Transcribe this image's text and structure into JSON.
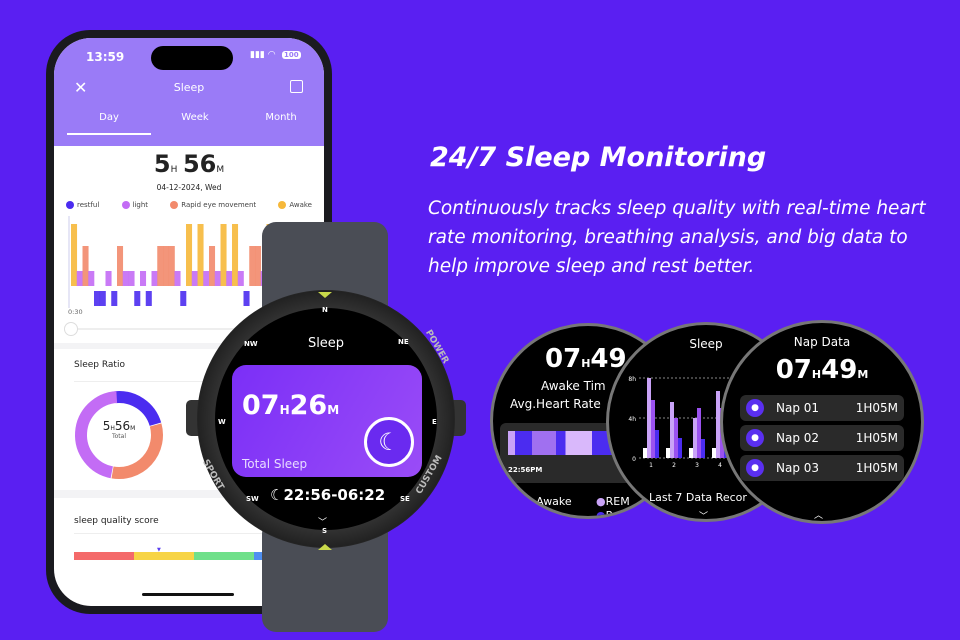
{
  "colors": {
    "background": "#5a1ff2",
    "restful": "#4b2cf0",
    "light": "#c36cf5",
    "rem": "#f28a6c",
    "awake": "#f6b83a",
    "app_header": "#9a7bf7"
  },
  "phone": {
    "status": {
      "time": "13:59",
      "battery": "100"
    },
    "header": {
      "title": "Sleep",
      "close_icon": "close-icon",
      "calendar_icon": "calendar-icon"
    },
    "tabs": [
      {
        "label": "Day",
        "active": true
      },
      {
        "label": "Week"
      },
      {
        "label": "Month"
      }
    ],
    "total": {
      "hours": "5",
      "h": "H",
      "minutes": "56",
      "m": "M"
    },
    "date": "04-12-2024, Wed",
    "legend": [
      {
        "label": "restful",
        "color": "#4b2cf0"
      },
      {
        "label": "light",
        "color": "#c36cf5"
      },
      {
        "label": "Rapid eye movement",
        "color": "#f28a6c"
      },
      {
        "label": "Awake",
        "color": "#f6b83a"
      }
    ],
    "chart_start_label": "0:30",
    "stages": [
      "awake",
      "light",
      "rem",
      "light",
      "restful",
      "restful",
      "light",
      "restful",
      "rem",
      "light",
      "light",
      "restful",
      "light",
      "restful",
      "light",
      "rem",
      "rem",
      "rem",
      "light",
      "restful",
      "awake",
      "light",
      "awake",
      "light",
      "rem",
      "light",
      "awake",
      "light",
      "awake",
      "light",
      "restful",
      "rem",
      "rem",
      "light",
      "awake",
      "light",
      "light",
      "light",
      "rem",
      "awake"
    ],
    "sleep_ratio": {
      "title": "Sleep Ratio",
      "center_hours": "5",
      "center_minutes": "56",
      "h": "H",
      "m": "M",
      "center_label": "Total",
      "slices": [
        {
          "stage": "restful",
          "fraction": 0.22
        },
        {
          "stage": "rem",
          "fraction": 0.32
        },
        {
          "stage": "light",
          "fraction": 0.46
        }
      ]
    },
    "quality": {
      "title": "sleep quality score",
      "segments": [
        "#f46a6a",
        "#f7d445",
        "#6fe08a",
        "#4f8ff0"
      ]
    }
  },
  "watch": {
    "title": "Sleep",
    "compass": [
      "N",
      "NE",
      "E",
      "SE",
      "S",
      "SW",
      "W",
      "NW"
    ],
    "bezel_labels": [
      "POWER",
      "CUSTOM",
      "SPORT"
    ],
    "value": {
      "hours": "07",
      "h": "H",
      "minutes": "26",
      "m": "M"
    },
    "label": "Total Sleep",
    "range": "22:56-06:22",
    "moon_icon": "moon-star-icon"
  },
  "marketing": {
    "heading": "24/7 Sleep Monitoring",
    "description": "Continuously tracks sleep quality with real-time heart rate monitoring, breathing analysis, and big data to help improve sleep and rest better."
  },
  "screen1": {
    "hours": "07",
    "h": "H",
    "minutes": "49",
    "line1": "Awake Tim",
    "line2": "Avg.Heart Rate",
    "time": "22:56PM",
    "legend": [
      "Awake",
      "REM",
      "Re"
    ]
  },
  "screen2": {
    "title": "Sleep",
    "footer": "Last 7 Data Recor",
    "chart_data": {
      "type": "bar",
      "categories": [
        "1",
        "2",
        "3",
        "4"
      ],
      "yticks": [
        "0",
        "4h",
        "8h"
      ],
      "ylim": [
        0,
        8
      ],
      "series": [
        {
          "color": "#ffffff",
          "values": [
            1,
            1,
            1,
            1
          ]
        },
        {
          "color": "#c9a3f7",
          "values": [
            8,
            5.6,
            4,
            6.7
          ]
        },
        {
          "color": "#9b52f0",
          "values": [
            5.8,
            4,
            5,
            5
          ]
        },
        {
          "color": "#4b2cf0",
          "values": [
            2.8,
            2,
            1.9,
            3
          ]
        }
      ]
    }
  },
  "screen3": {
    "title": "Nap Data",
    "hours": "07",
    "h": "H",
    "minutes": "49",
    "m": "M",
    "naps": [
      {
        "name": "Nap 01",
        "duration": "1H05M"
      },
      {
        "name": "Nap 02",
        "duration": "1H05M"
      },
      {
        "name": "Nap 03",
        "duration": "1H05M"
      }
    ]
  }
}
